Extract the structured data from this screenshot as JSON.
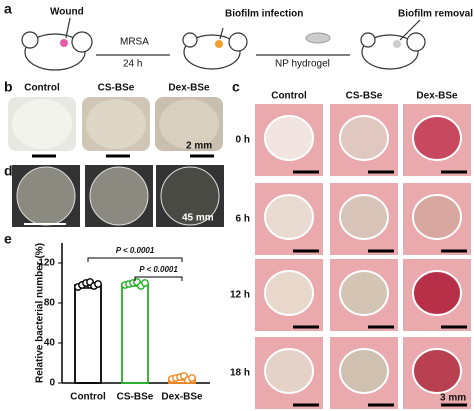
{
  "panels": {
    "a": {
      "label": "a",
      "wound": "Wound",
      "mrsa": "MRSA",
      "time": "24 h",
      "infection": "Biofilm infection",
      "hydrogel": "NP hydrogel",
      "removal": "Biofilm removal"
    },
    "b": {
      "label": "b",
      "columns": [
        "Control",
        "CS-BSe",
        "Dex-BSe"
      ],
      "scale": "2 mm"
    },
    "c": {
      "label": "c",
      "columns": [
        "Control",
        "CS-BSe",
        "Dex-BSe"
      ],
      "rows": [
        "0 h",
        "6 h",
        "12 h",
        "18 h"
      ],
      "scale": "3 mm"
    },
    "d": {
      "label": "d",
      "scale": "45 mm"
    },
    "e": {
      "label": "e"
    }
  },
  "chart_data": {
    "type": "bar",
    "ylabel": "Relative bacterial number (%)",
    "categories": [
      "Control",
      "CS-BSe",
      "Dex-BSe"
    ],
    "values": [
      98,
      99,
      5
    ],
    "errors": [
      3,
      2,
      2
    ],
    "colors": [
      "#000000",
      "#22b322",
      "#f08a24"
    ],
    "points": [
      [
        96,
        98,
        100,
        101,
        97,
        99
      ],
      [
        98,
        99,
        100,
        101,
        97,
        100
      ],
      [
        4,
        5,
        6,
        7,
        3,
        5
      ]
    ],
    "annotations": [
      "P < 0.0001",
      "P < 0.0001"
    ],
    "ylim": [
      0,
      140
    ],
    "yticks": [
      0,
      40,
      80,
      120
    ]
  }
}
